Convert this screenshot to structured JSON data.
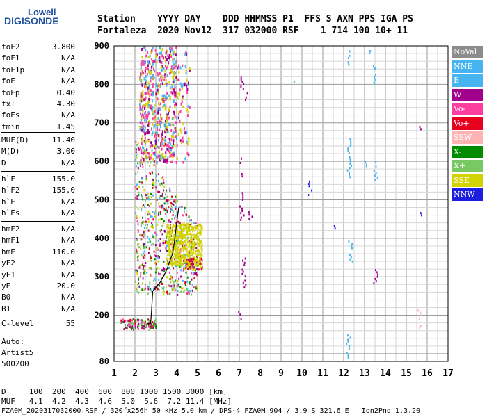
{
  "logo": {
    "line1": "Lowell",
    "line2": "DIGISONDE"
  },
  "header": {
    "labels": [
      "Station",
      "YYYY",
      "DAY",
      "DDD",
      "HHMMSS",
      "P1",
      "FFS",
      "S",
      "AXN",
      "PPS",
      "IGA",
      "PS"
    ],
    "row1": "Station    YYYY DAY    DDD HHMMSS P1  FFS S AXN PPS IGA PS",
    "row2": "Fortaleza  2020 Nov12  317 032000 RSF    1 714 100 10+ 11"
  },
  "params": {
    "group1": [
      {
        "name": "foF2",
        "value": "3.800"
      },
      {
        "name": "foF1",
        "value": "N/A"
      },
      {
        "name": "foF1p",
        "value": "N/A"
      },
      {
        "name": "foE",
        "value": "N/A"
      },
      {
        "name": "foEp",
        "value": "0.40"
      },
      {
        "name": "fxI",
        "value": "4.30"
      },
      {
        "name": "foEs",
        "value": "N/A"
      },
      {
        "name": "fmin",
        "value": "1.45"
      }
    ],
    "group2": [
      {
        "name": "MUF(D)",
        "value": "11.40"
      },
      {
        "name": "M(D)",
        "value": "3.00"
      },
      {
        "name": "D",
        "value": "N/A"
      }
    ],
    "group3": [
      {
        "name": "h`F",
        "value": "155.0"
      },
      {
        "name": "h`F2",
        "value": "155.0"
      },
      {
        "name": "h`E",
        "value": "N/A"
      },
      {
        "name": "h`Es",
        "value": "N/A"
      }
    ],
    "group4": [
      {
        "name": "hmF2",
        "value": "N/A"
      },
      {
        "name": "hmF1",
        "value": "N/A"
      },
      {
        "name": "hmE",
        "value": "110.0"
      },
      {
        "name": "yF2",
        "value": "N/A"
      },
      {
        "name": "yF1",
        "value": "N/A"
      },
      {
        "name": "yE",
        "value": "20.0"
      },
      {
        "name": "B0",
        "value": "N/A"
      },
      {
        "name": "B1",
        "value": "N/A"
      }
    ],
    "group5": [
      {
        "name": "C-level",
        "value": "55"
      }
    ],
    "auto": {
      "line1": "Auto:",
      "line2": "Artist5",
      "line3": "500200"
    }
  },
  "legend": [
    {
      "label": "NoVal",
      "color": "#8c8c8c"
    },
    {
      "label": "NNE",
      "color": "#45b4f0"
    },
    {
      "label": "E",
      "color": "#45b4f0"
    },
    {
      "label": "W",
      "color": "#a0008c"
    },
    {
      "label": "Vo-",
      "color": "#ff3ca0"
    },
    {
      "label": "Vo+",
      "color": "#e6001e"
    },
    {
      "label": "SSW",
      "color": "#ffb4b4"
    },
    {
      "label": "X-",
      "color": "#008c00"
    },
    {
      "label": "X+",
      "color": "#78c864"
    },
    {
      "label": "SSE",
      "color": "#d2d200"
    },
    {
      "label": "NNW",
      "color": "#1e1ede"
    }
  ],
  "footer": {
    "line1": "D     100  200  400  600  800 1000 1500 3000 [km]",
    "line2": "MUF   4.1  4.2  4.3  4.6  5.0  5.6  7.2 11.4 [MHz]",
    "line3": "FZA0M_2020317032000.RSF / 320fx256h 50 kHz 5.0 km / DPS-4 FZA0M 904 / 3.9 S 321.6 E   Ion2Png 1.3.20"
  },
  "chart_data": {
    "type": "scatter",
    "title": "",
    "xlabel": "",
    "ylabel": "",
    "xlim": [
      1,
      17
    ],
    "ylim": [
      80,
      900
    ],
    "xticks": [
      1,
      2,
      3,
      4,
      5,
      6,
      7,
      8,
      9,
      10,
      11,
      12,
      13,
      14,
      15,
      16,
      17
    ],
    "yticks": [
      80,
      200,
      300,
      400,
      500,
      600,
      700,
      800,
      900
    ],
    "grid": true,
    "trace_line": {
      "color": "#000000",
      "points": [
        [
          2.6,
          178
        ],
        [
          2.75,
          178
        ],
        [
          2.8,
          215
        ],
        [
          2.85,
          262
        ],
        [
          3.0,
          272
        ],
        [
          3.2,
          285
        ],
        [
          3.5,
          315
        ],
        [
          3.8,
          360
        ],
        [
          3.9,
          395
        ],
        [
          4.0,
          440
        ],
        [
          4.1,
          480
        ]
      ]
    },
    "echo_regions": [
      {
        "name": "E-layer echoes",
        "x": [
          1.3,
          3.0
        ],
        "y": [
          165,
          192
        ],
        "colors": [
          "#e6001e",
          "#a0008c",
          "#78c864",
          "#008c00",
          "#ff3ca0"
        ]
      },
      {
        "name": "F-layer main trace",
        "x": [
          2.0,
          5.0
        ],
        "y": [
          255,
          660
        ],
        "colors": [
          "#a0008c",
          "#ff3ca0",
          "#e6001e",
          "#45b4f0",
          "#008c00",
          "#78c864",
          "#d2d200"
        ]
      },
      {
        "name": "F-layer upper spread",
        "x": [
          2.2,
          4.6
        ],
        "y": [
          600,
          900
        ],
        "colors": [
          "#ff3ca0",
          "#d2d200",
          "#a0008c",
          "#45b4f0"
        ]
      },
      {
        "name": "O-trace high frequency end",
        "x": [
          3.5,
          5.2
        ],
        "y": [
          330,
          440
        ],
        "colors": [
          "#d2d200"
        ]
      },
      {
        "name": "MHz 5 region",
        "x": [
          4.4,
          5.2
        ],
        "y": [
          320,
          350
        ],
        "colors": [
          "#d2d200",
          "#e6001e",
          "#a0008c"
        ]
      }
    ],
    "isolated_echoes": [
      {
        "x": 7.05,
        "y": [
          560,
          610
        ],
        "color": "#a0008c"
      },
      {
        "x": 7.1,
        "y": [
          450,
          520
        ],
        "color": "#a0008c"
      },
      {
        "x": 7.2,
        "y": [
          270,
          350
        ],
        "color": "#a0008c"
      },
      {
        "x": 7.0,
        "y": [
          190,
          210
        ],
        "color": "#a0008c"
      },
      {
        "x": 7.1,
        "y": [
          790,
          820
        ],
        "color": "#a0008c"
      },
      {
        "x": 7.3,
        "y": [
          760,
          780
        ],
        "color": "#a0008c"
      },
      {
        "x": 7.5,
        "y": [
          440,
          470
        ],
        "color": "#a0008c"
      },
      {
        "x": 9.5,
        "y": [
          800,
          808
        ],
        "color": "#45b4f0"
      },
      {
        "x": 10.35,
        "y": [
          510,
          550
        ],
        "color": "#1e1ede"
      },
      {
        "x": 11.5,
        "y": [
          428,
          434
        ],
        "color": "#1e1ede"
      },
      {
        "x": 12.2,
        "y": [
          90,
          150
        ],
        "color": "#45b4f0"
      },
      {
        "x": 12.3,
        "y": [
          330,
          400
        ],
        "color": "#45b4f0"
      },
      {
        "x": 12.25,
        "y": [
          560,
          660
        ],
        "color": "#45b4f0"
      },
      {
        "x": 12.2,
        "y": [
          850,
          900
        ],
        "color": "#45b4f0"
      },
      {
        "x": 13.0,
        "y": [
          580,
          600
        ],
        "color": "#45b4f0"
      },
      {
        "x": 13.2,
        "y": [
          880,
          895
        ],
        "color": "#45b4f0"
      },
      {
        "x": 13.45,
        "y": [
          800,
          850
        ],
        "color": "#45b4f0"
      },
      {
        "x": 13.5,
        "y": [
          280,
          320
        ],
        "color": "#a0008c"
      },
      {
        "x": 13.5,
        "y": [
          550,
          600
        ],
        "color": "#45b4f0"
      },
      {
        "x": 15.6,
        "y": [
          682,
          692
        ],
        "color": "#a0008c"
      },
      {
        "x": 15.6,
        "y": [
          460,
          468
        ],
        "color": "#1e1ede"
      },
      {
        "x": 15.6,
        "y": [
          165,
          215
        ],
        "color": "#ffb4b4"
      },
      {
        "x": 15.3,
        "y": [
          855,
          860
        ],
        "color": "#ffb4b4"
      }
    ]
  }
}
